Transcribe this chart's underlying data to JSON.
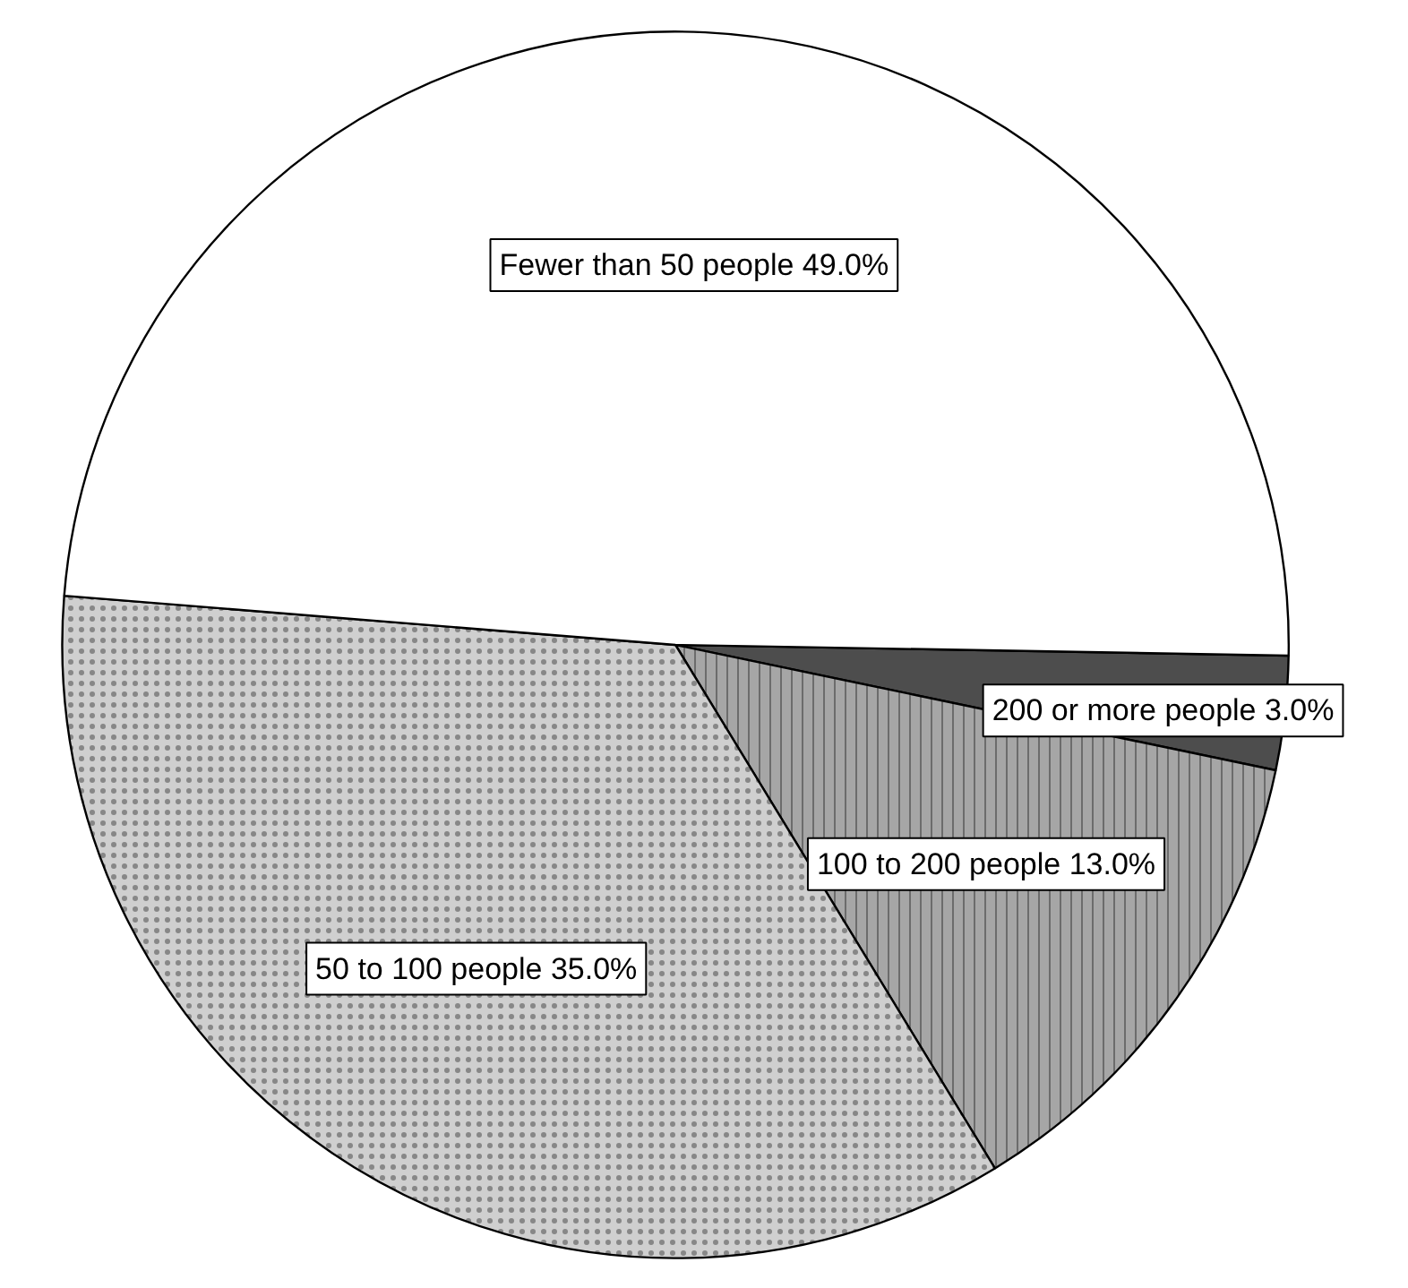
{
  "chart_data": {
    "type": "pie",
    "categories": [
      "200 or more people",
      "100 to 200 people",
      "50 to 100 people",
      "Fewer than 50 people"
    ],
    "values": [
      3.0,
      13.0,
      35.0,
      49.0
    ],
    "value_labels": [
      "3.0%",
      "13.0%",
      "35.0%",
      "49.0%"
    ],
    "colors": [
      "#4d4d4d",
      "#a6a6a6",
      "#cfcfcf",
      "#ffffff"
    ],
    "legend": false
  }
}
